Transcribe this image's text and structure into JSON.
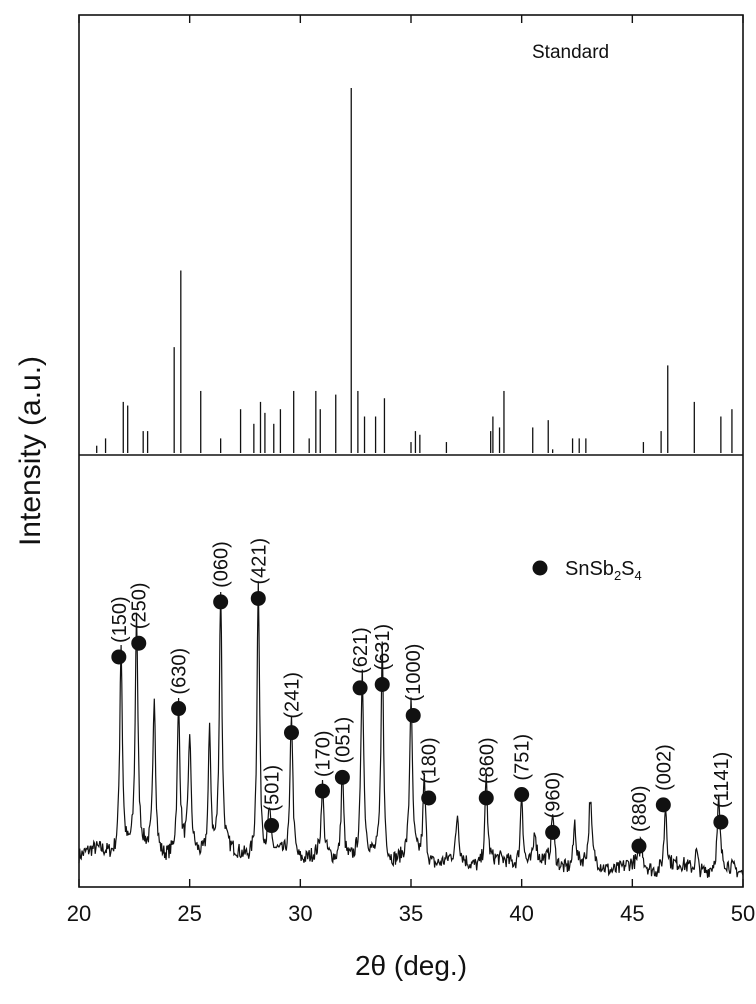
{
  "chart_data": {
    "type": "line",
    "xlabel": "2θ (deg.)",
    "ylabel": "Intensity (a.u.)",
    "xlim": [
      20,
      50
    ],
    "x_ticks": [
      20,
      25,
      30,
      35,
      40,
      45,
      50
    ],
    "grid": false,
    "panels": [
      {
        "name": "Standard",
        "kind": "stick",
        "label": "Standard",
        "ylim": [
          0,
          100
        ],
        "sticks": [
          [
            20.8,
            2
          ],
          [
            21.2,
            4
          ],
          [
            22.0,
            14
          ],
          [
            22.2,
            13
          ],
          [
            22.9,
            6
          ],
          [
            23.1,
            6
          ],
          [
            24.3,
            29
          ],
          [
            24.6,
            50
          ],
          [
            25.5,
            17
          ],
          [
            26.4,
            4
          ],
          [
            27.3,
            12
          ],
          [
            27.9,
            8
          ],
          [
            28.2,
            14
          ],
          [
            28.4,
            11
          ],
          [
            28.8,
            8
          ],
          [
            29.1,
            12
          ],
          [
            29.7,
            17
          ],
          [
            30.4,
            4
          ],
          [
            30.7,
            17
          ],
          [
            30.9,
            12
          ],
          [
            31.6,
            16
          ],
          [
            32.3,
            100
          ],
          [
            32.6,
            17
          ],
          [
            32.9,
            10
          ],
          [
            33.4,
            10
          ],
          [
            33.8,
            15
          ],
          [
            35.0,
            3
          ],
          [
            35.2,
            6
          ],
          [
            35.4,
            5
          ],
          [
            36.6,
            3
          ],
          [
            38.6,
            6
          ],
          [
            38.7,
            10
          ],
          [
            39.0,
            7
          ],
          [
            39.2,
            17
          ],
          [
            40.5,
            7
          ],
          [
            41.2,
            9
          ],
          [
            41.4,
            1
          ],
          [
            42.3,
            4
          ],
          [
            42.6,
            4
          ],
          [
            42.9,
            4
          ],
          [
            45.5,
            3
          ],
          [
            46.3,
            6
          ],
          [
            46.6,
            24
          ],
          [
            47.8,
            14
          ],
          [
            49.0,
            10
          ],
          [
            49.5,
            12
          ]
        ]
      },
      {
        "name": "SnSb2S4",
        "kind": "pattern",
        "ylim": [
          0,
          100
        ],
        "legend": {
          "marker": "●",
          "label_base": "SnSb",
          "sub1": "2",
          "mid": "S",
          "sub2": "4"
        },
        "peaks": [
          [
            21.9,
            62
          ],
          [
            22.6,
            69
          ],
          [
            23.4,
            47
          ],
          [
            24.5,
            43
          ],
          [
            25.0,
            34
          ],
          [
            25.9,
            36
          ],
          [
            26.4,
            77
          ],
          [
            28.1,
            80
          ],
          [
            28.6,
            12
          ],
          [
            29.6,
            43
          ],
          [
            31.0,
            20
          ],
          [
            31.9,
            26
          ],
          [
            32.8,
            55
          ],
          [
            33.7,
            63
          ],
          [
            35.0,
            47
          ],
          [
            35.6,
            24
          ],
          [
            37.1,
            13
          ],
          [
            38.4,
            25
          ],
          [
            40.0,
            22
          ],
          [
            40.6,
            10
          ],
          [
            41.4,
            15
          ],
          [
            42.4,
            13
          ],
          [
            43.1,
            19
          ],
          [
            45.4,
            8
          ],
          [
            46.5,
            19
          ],
          [
            47.9,
            6
          ],
          [
            48.9,
            19
          ]
        ],
        "annotations": [
          {
            "label": "(150)",
            "x": 21.8,
            "y": 66
          },
          {
            "label": "(250)",
            "x": 22.7,
            "y": 70
          },
          {
            "label": "(630)",
            "x": 24.5,
            "y": 51
          },
          {
            "label": "(060)",
            "x": 26.4,
            "y": 82
          },
          {
            "label": "(421)",
            "x": 28.1,
            "y": 83
          },
          {
            "label": "(501)",
            "x": 28.7,
            "y": 17
          },
          {
            "label": "(241)",
            "x": 29.6,
            "y": 44
          },
          {
            "label": "(170)",
            "x": 31.0,
            "y": 27
          },
          {
            "label": "(051)",
            "x": 31.9,
            "y": 31
          },
          {
            "label": "(621)",
            "x": 32.7,
            "y": 57
          },
          {
            "label": "(631)",
            "x": 33.7,
            "y": 58
          },
          {
            "label": "(1000)",
            "x": 35.1,
            "y": 49
          },
          {
            "label": "(180)",
            "x": 35.8,
            "y": 25
          },
          {
            "label": "(860)",
            "x": 38.4,
            "y": 25
          },
          {
            "label": "(751)",
            "x": 40.0,
            "y": 26
          },
          {
            "label": "(960)",
            "x": 41.4,
            "y": 15
          },
          {
            "label": "(880)",
            "x": 45.3,
            "y": 11
          },
          {
            "label": "(002)",
            "x": 46.4,
            "y": 23
          },
          {
            "label": "(1141)",
            "x": 49.0,
            "y": 18
          }
        ]
      }
    ]
  }
}
